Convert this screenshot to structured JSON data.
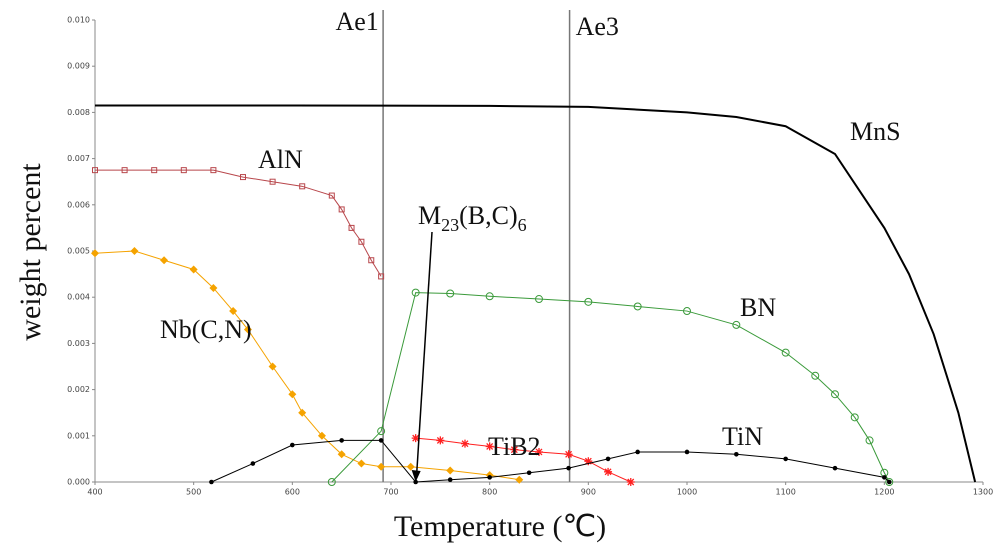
{
  "chart_data": {
    "type": "line",
    "x_label": "Temperature (℃)",
    "y_label": "weight percent",
    "xlim": [
      400,
      1300
    ],
    "ylim": [
      0,
      0.01
    ],
    "xticks": [
      400,
      500,
      600,
      700,
      800,
      900,
      1000,
      1100,
      1200,
      1300
    ],
    "yticks": [
      {
        "value": 0,
        "label": "0.000"
      },
      {
        "value": 0.001,
        "label": "0.001"
      },
      {
        "value": 0.002,
        "label": "0.002"
      },
      {
        "value": 0.003,
        "label": "0.003"
      },
      {
        "value": 0.004,
        "label": "0.004"
      },
      {
        "value": 0.005,
        "label": "0.005"
      },
      {
        "value": 0.006,
        "label": "0.006"
      },
      {
        "value": 0.007,
        "label": "0.007"
      },
      {
        "value": 0.008,
        "label": "0.008"
      },
      {
        "value": 0.009,
        "label": "0.009"
      },
      {
        "value": 0.01,
        "label": "0.010"
      }
    ],
    "vlines": [
      {
        "label": "Ae1",
        "value": 692
      },
      {
        "label": "Ae3",
        "value": 881
      }
    ],
    "annotation": {
      "parts": [
        "M",
        "23",
        "(B,C)",
        "6"
      ],
      "x": 725,
      "y": 0
    },
    "series": [
      {
        "name": "MnS",
        "color": "#000000",
        "marker": "none",
        "x": [
          400,
          600,
          800,
          900,
          1000,
          1050,
          1100,
          1150,
          1200,
          1225,
          1250,
          1275,
          1292
        ],
        "values": [
          0.00815,
          0.00815,
          0.00814,
          0.00812,
          0.008,
          0.0079,
          0.0077,
          0.0071,
          0.0055,
          0.0045,
          0.0032,
          0.0015,
          0
        ]
      },
      {
        "name": "AlN",
        "color": "#b8464b",
        "marker": "square",
        "x": [
          400,
          430,
          460,
          490,
          520,
          550,
          580,
          610,
          640,
          650,
          660,
          670,
          680,
          690
        ],
        "values": [
          0.00675,
          0.00675,
          0.00675,
          0.00675,
          0.00675,
          0.0066,
          0.0065,
          0.0064,
          0.0062,
          0.0059,
          0.0055,
          0.0052,
          0.0048,
          0.00445
        ]
      },
      {
        "name": "Nb(C,N)",
        "color": "#f5a300",
        "marker": "diamond",
        "x": [
          400,
          440,
          470,
          500,
          520,
          540,
          555,
          580,
          600,
          610,
          630,
          650,
          670,
          690,
          720,
          760,
          800,
          830
        ],
        "values": [
          0.00495,
          0.005,
          0.0048,
          0.0046,
          0.0042,
          0.0037,
          0.0033,
          0.0025,
          0.0019,
          0.0015,
          0.001,
          0.0006,
          0.0004,
          0.00033,
          0.00033,
          0.00025,
          0.00015,
          5e-05
        ]
      },
      {
        "name": "BN",
        "color": "#3a9a3a",
        "marker": "circle",
        "x": [
          640,
          690,
          725,
          760,
          800,
          850,
          900,
          950,
          1000,
          1050,
          1100,
          1130,
          1150,
          1170,
          1185,
          1200,
          1205
        ],
        "values": [
          0,
          0.0011,
          0.0041,
          0.00408,
          0.00402,
          0.00396,
          0.0039,
          0.0038,
          0.0037,
          0.0034,
          0.0028,
          0.0023,
          0.0019,
          0.0014,
          0.0009,
          0.0002,
          0
        ]
      },
      {
        "name": "TiB2",
        "color": "#ff2020",
        "marker": "star",
        "x": [
          725,
          750,
          775,
          800,
          825,
          850,
          880,
          900,
          920,
          943
        ],
        "values": [
          0.00095,
          0.0009,
          0.00083,
          0.00077,
          0.0007,
          0.00065,
          0.0006,
          0.00045,
          0.00022,
          0
        ]
      },
      {
        "name": "TiN",
        "color": "#000000",
        "marker": "dot",
        "x": [
          518,
          560,
          600,
          650,
          690,
          725,
          760,
          800,
          840,
          880,
          920,
          950,
          1000,
          1050,
          1100,
          1150,
          1200,
          1205
        ],
        "values": [
          0,
          0.0004,
          0.0008,
          0.0009,
          0.0009,
          0,
          5e-05,
          0.0001,
          0.0002,
          0.0003,
          0.0005,
          0.00065,
          0.00065,
          0.0006,
          0.0005,
          0.0003,
          0.0001,
          0
        ]
      }
    ]
  }
}
